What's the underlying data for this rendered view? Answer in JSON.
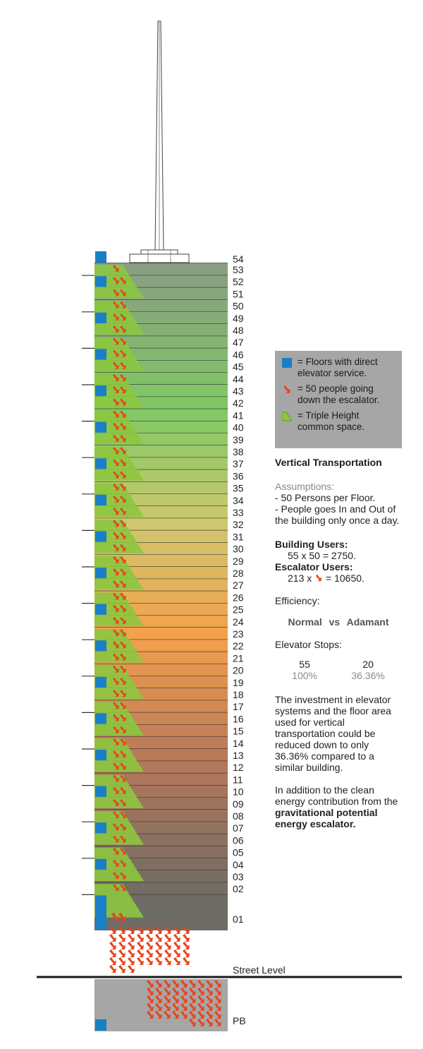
{
  "floors": [
    "54",
    "53",
    "52",
    "51",
    "50",
    "49",
    "48",
    "47",
    "46",
    "45",
    "44",
    "43",
    "42",
    "41",
    "40",
    "39",
    "38",
    "37",
    "36",
    "35",
    "34",
    "33",
    "32",
    "31",
    "30",
    "29",
    "28",
    "27",
    "26",
    "25",
    "24",
    "23",
    "22",
    "21",
    "20",
    "19",
    "18",
    "17",
    "16",
    "15",
    "14",
    "13",
    "12",
    "11",
    "10",
    "09",
    "08",
    "07",
    "06",
    "05",
    "04",
    "03",
    "02",
    "01"
  ],
  "street_label": "Street Level",
  "basement_label": "PB",
  "legend": {
    "elevator": "= Floors with direct elevator service.",
    "escalator": "= 50 people going down the escalator.",
    "triple": "= Triple Height common space."
  },
  "colors": {
    "elevator_blue": "#1a7fc5",
    "arrow_red": "#e5461f",
    "triple_green": "#8cc63f",
    "legend_bg": "#a6a6a6"
  },
  "text": {
    "title": "Vertical Transportation",
    "assumptions_head": "Assumptions:",
    "assumption_1": "- 50 Persons per Floor.",
    "assumption_2": "- People goes In and Out of the building only once a day.",
    "building_users_head": "Building Users:",
    "building_users_calc": "55 x 50 = 2750.",
    "escalator_users_head": "Escalator Users:",
    "escalator_users_a": "213 x",
    "escalator_users_b": "= 10650.",
    "efficiency": "Efficiency:",
    "normal": "Normal",
    "vs": "vs",
    "adamant": "Adamant",
    "elevator_stops": "Elevator Stops:",
    "normal_stops": "55",
    "normal_pct": "100%",
    "adamant_stops": "20",
    "adamant_pct": "36.36%",
    "investment": "The investment in elevator systems and the floor area used for vertical transportation could be reduced down to only 36.36% compared to a similar building.",
    "addition_a": "In addition to the clean energy contribution from the",
    "addition_b": "gravitational potential energy escalator."
  }
}
